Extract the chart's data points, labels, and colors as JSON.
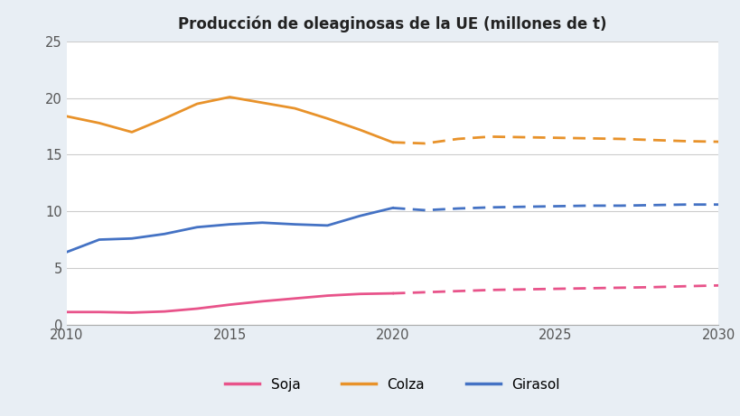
{
  "title": "Producción de oleaginosas de la UE (millones de t)",
  "fig_facecolor": "#e8eef4",
  "plot_bg_color": "#ffffff",
  "xlim": [
    2010,
    2030
  ],
  "ylim": [
    0,
    25
  ],
  "yticks": [
    0,
    5,
    10,
    15,
    20,
    25
  ],
  "xticks": [
    2010,
    2015,
    2020,
    2025,
    2030
  ],
  "legend_labels": [
    "Soja",
    "Colza",
    "Girasol"
  ],
  "soja_color": "#e8538a",
  "colza_color": "#e8922a",
  "girasol_color": "#4472c4",
  "soja_solid": {
    "x": [
      2010,
      2011,
      2012,
      2013,
      2014,
      2015,
      2016,
      2017,
      2018,
      2019,
      2020
    ],
    "y": [
      1.1,
      1.1,
      1.05,
      1.15,
      1.4,
      1.75,
      2.05,
      2.3,
      2.55,
      2.7,
      2.75
    ]
  },
  "soja_dashed": {
    "x": [
      2020,
      2021,
      2022,
      2023,
      2024,
      2025,
      2026,
      2027,
      2028,
      2029,
      2030
    ],
    "y": [
      2.75,
      2.85,
      2.95,
      3.05,
      3.1,
      3.15,
      3.2,
      3.25,
      3.3,
      3.38,
      3.45
    ]
  },
  "colza_solid": {
    "x": [
      2010,
      2011,
      2012,
      2013,
      2014,
      2015,
      2016,
      2017,
      2018,
      2019,
      2020
    ],
    "y": [
      18.4,
      17.8,
      17.0,
      18.2,
      19.5,
      20.1,
      19.6,
      19.1,
      18.2,
      17.2,
      16.1
    ]
  },
  "colza_dashed": {
    "x": [
      2020,
      2021,
      2022,
      2023,
      2024,
      2025,
      2026,
      2027,
      2028,
      2029,
      2030
    ],
    "y": [
      16.1,
      16.0,
      16.4,
      16.6,
      16.55,
      16.5,
      16.45,
      16.4,
      16.3,
      16.2,
      16.15
    ]
  },
  "girasol_solid": {
    "x": [
      2010,
      2011,
      2012,
      2013,
      2014,
      2015,
      2016,
      2017,
      2018,
      2019,
      2020
    ],
    "y": [
      6.4,
      7.5,
      7.6,
      8.0,
      8.6,
      8.85,
      9.0,
      8.85,
      8.75,
      9.6,
      10.3
    ]
  },
  "girasol_dashed": {
    "x": [
      2020,
      2021,
      2022,
      2023,
      2024,
      2025,
      2026,
      2027,
      2028,
      2029,
      2030
    ],
    "y": [
      10.3,
      10.1,
      10.25,
      10.35,
      10.4,
      10.45,
      10.5,
      10.5,
      10.55,
      10.6,
      10.6
    ]
  },
  "linewidth": 2.0,
  "title_fontsize": 12,
  "tick_fontsize": 10.5,
  "legend_fontsize": 11
}
